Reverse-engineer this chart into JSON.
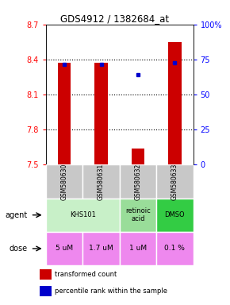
{
  "title": "GDS4912 / 1382684_at",
  "samples": [
    "GSM580630",
    "GSM580631",
    "GSM580632",
    "GSM580633"
  ],
  "bar_values": [
    8.37,
    8.37,
    7.64,
    8.55
  ],
  "bar_bottom": 7.5,
  "blue_dot_values": [
    8.36,
    8.36,
    8.27,
    8.37
  ],
  "ylim": [
    7.5,
    8.7
  ],
  "right_ylim": [
    0,
    100
  ],
  "right_yticks": [
    0,
    25,
    50,
    75,
    100
  ],
  "right_yticklabels": [
    "0",
    "25",
    "50",
    "75",
    "100%"
  ],
  "left_yticks": [
    7.5,
    7.8,
    8.1,
    8.4,
    8.7
  ],
  "left_yticklabels": [
    "7.5",
    "7.8",
    "8.1",
    "8.4",
    "8.7"
  ],
  "hlines": [
    8.4,
    8.1,
    7.8
  ],
  "bar_color": "#cc0000",
  "dot_color": "#0000cc",
  "agent_spans": [
    [
      0,
      2,
      "#c8f0c8",
      "KHS101"
    ],
    [
      2,
      3,
      "#99dd99",
      "retinoic\nacid"
    ],
    [
      3,
      4,
      "#33cc44",
      "DMSO"
    ]
  ],
  "dose_labels": [
    "5 uM",
    "1.7 uM",
    "1 uM",
    "0.1 %"
  ],
  "dose_color": "#ee88ee",
  "sample_bg_color": "#c8c8c8",
  "legend_red": "transformed count",
  "legend_blue": "percentile rank within the sample"
}
